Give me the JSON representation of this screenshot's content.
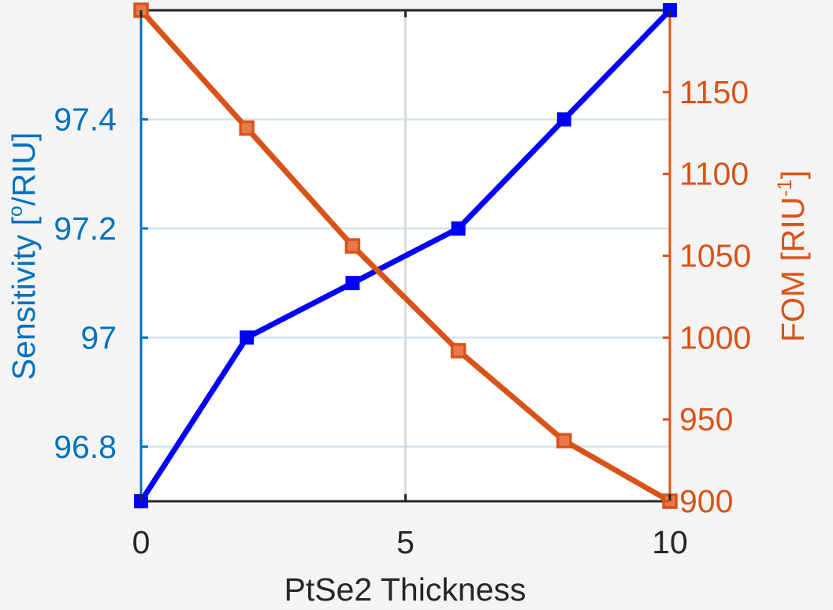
{
  "chart_data": {
    "type": "line",
    "x": [
      0,
      2,
      4,
      6,
      8,
      10
    ],
    "xlabel": "PtSe2 Thickness",
    "xlim": [
      0,
      10
    ],
    "xticks": [
      0,
      5,
      10
    ],
    "xtick_labels": [
      "0",
      "5",
      "10"
    ],
    "left_axis": {
      "label_main": "Sensitivity  [",
      "label_sup": "o",
      "label_tail": "/RIU]",
      "ylim": [
        96.7,
        97.6
      ],
      "ticks": [
        96.8,
        97,
        97.2,
        97.4
      ],
      "tick_labels": [
        "96.8",
        "97",
        "97.2",
        "97.4"
      ],
      "color": "#0072bd"
    },
    "right_axis": {
      "label_main": "FOM  [RIU",
      "label_sup": "-1",
      "label_tail": "]",
      "ylim": [
        900,
        1200
      ],
      "ticks": [
        900,
        950,
        1000,
        1050,
        1100,
        1150
      ],
      "tick_labels": [
        "900",
        "950",
        "1000",
        "1050",
        "1100",
        "1150"
      ],
      "color": "#d95319"
    },
    "series": [
      {
        "axis": "left",
        "values": [
          96.7,
          97.0,
          97.1,
          97.2,
          97.4,
          97.6
        ],
        "color": "#0000ff",
        "marker": "filled-square"
      },
      {
        "axis": "right",
        "values": [
          1200,
          1128,
          1056,
          992,
          937,
          900
        ],
        "color": "#d95319",
        "marker": "square"
      }
    ],
    "grid": {
      "horizontal_left_ticks": true,
      "vertical_at": [
        5
      ]
    }
  }
}
